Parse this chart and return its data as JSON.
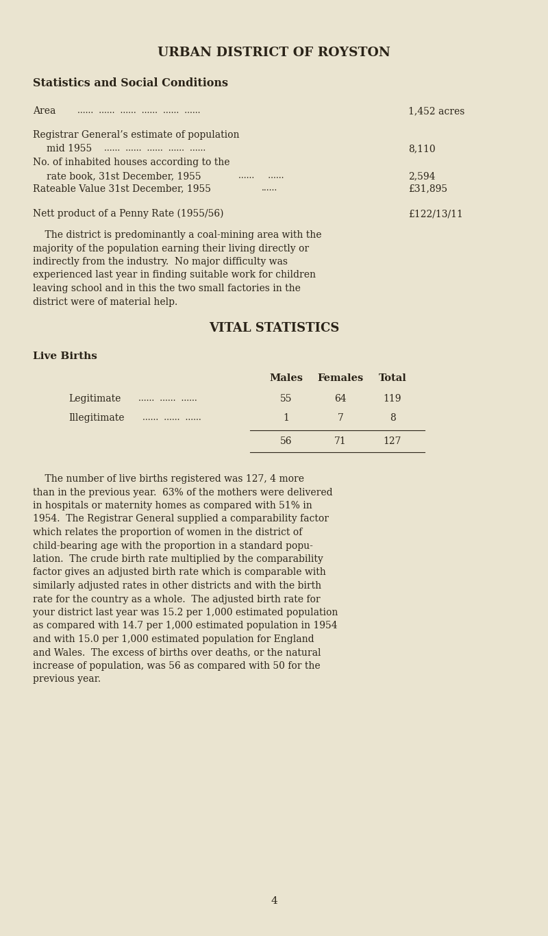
{
  "bg_color": "#EAE4D0",
  "text_color": "#2a2318",
  "title": "URBAN DISTRICT OF ROYSTON",
  "subtitle": "Statistics and Social Conditions",
  "para1_lines": [
    "    The district is predominantly a coal-mining area with the",
    "majority of the population earning their living directly or",
    "indirectly from the industry.  No major difficulty was",
    "experienced last year in finding suitable work for children",
    "leaving school and in this the two small factories in the",
    "district were of material help."
  ],
  "vital_title": "VITAL STATISTICS",
  "live_births_title": "Live Births",
  "table_col_labels": [
    "Males",
    "Females",
    "Total"
  ],
  "table_rows": [
    {
      "label": "Legitimate",
      "values": [
        "55",
        "64",
        "119"
      ]
    },
    {
      "label": "Illegitimate",
      "values": [
        "1",
        "7",
        "8"
      ]
    }
  ],
  "table_totals": [
    "56",
    "71",
    "127"
  ],
  "para2_lines": [
    "    The number of live births registered was 127, 4 more",
    "than in the previous year.  63% of the mothers were delivered",
    "in hospitals or maternity homes as compared with 51% in",
    "1954.  The Registrar General supplied a comparability factor",
    "which relates the proportion of women in the district of",
    "child-bearing age with the proportion in a standard popu-",
    "lation.  The crude birth rate multiplied by the comparability",
    "factor gives an adjusted birth rate which is comparable with",
    "similarly adjusted rates in other districts and with the birth",
    "rate for the country as a whole.  The adjusted birth rate for",
    "your district last year was 15.2 per 1,000 estimated population",
    "as compared with 14.7 per 1,000 estimated population in 1954",
    "and with 15.0 per 1,000 estimated population for England",
    "and Wales.  The excess of births over deaths, or the natural",
    "increase of population, was 56 as compared with 50 for the",
    "previous year."
  ],
  "page_number": "4",
  "stats_rows": [
    {
      "line1": "Area",
      "dots1": "......  ......  ......  ......  ......  ......",
      "line2": null,
      "dots2": null,
      "value": "1,452 acres"
    },
    {
      "line1": "Registrar General’s estimate of population",
      "dots1": null,
      "line2": "    mid 1955",
      "dots2": "......  ......  ......  ......  ......",
      "value": "8,110"
    },
    {
      "line1": "No. of inhabited houses according to the",
      "dots1": null,
      "line2": "    rate book, 31st December, 1955",
      "dots2": "......     ......",
      "value": "2,594"
    },
    {
      "line1": "Rateable Value 31st December, 1955",
      "dots1": "......",
      "line2": null,
      "dots2": null,
      "value": "£31,895"
    },
    {
      "line1": "Nett product of a Penny Rate (1955/56)",
      "dots1": null,
      "line2": null,
      "dots2": null,
      "value": "£122/13/11"
    }
  ]
}
